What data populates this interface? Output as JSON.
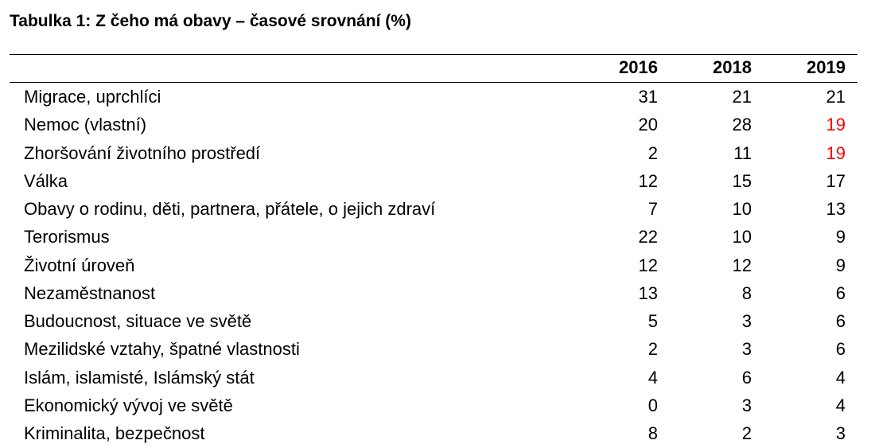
{
  "title": "Tabulka 1: Z čeho má obavy – časové srovnání (%)",
  "table": {
    "header": [
      "",
      "2016",
      "2018",
      "2019"
    ],
    "rows": [
      [
        "Migrace, uprchlíci",
        31,
        21,
        21
      ],
      [
        "Nemoc (vlastní)",
        20,
        28,
        19
      ],
      [
        "Zhoršování životního prostředí",
        2,
        11,
        19
      ],
      [
        "Válka",
        12,
        15,
        17
      ],
      [
        "Obavy o rodinu, děti, partnera, přátele, o jejich zdraví",
        7,
        10,
        13
      ],
      [
        "Terorismus",
        22,
        10,
        9
      ],
      [
        "Životní úroveň",
        12,
        12,
        9
      ],
      [
        "Nezaměstnanost",
        13,
        8,
        6
      ],
      [
        "Budoucnost, situace ve světě",
        5,
        3,
        6
      ],
      [
        "Mezilidské vztahy, špatné vlastnosti",
        2,
        3,
        6
      ],
      [
        "Islám, islamisté, Islámský stát",
        4,
        6,
        4
      ],
      [
        "Ekonomický vývoj ve světě",
        0,
        3,
        4
      ],
      [
        "Kriminalita, bezpečnost",
        8,
        2,
        3
      ]
    ],
    "highlight": {
      "color": "#ff0000",
      "cells": [
        [
          1,
          3
        ],
        [
          2,
          3
        ]
      ]
    }
  }
}
